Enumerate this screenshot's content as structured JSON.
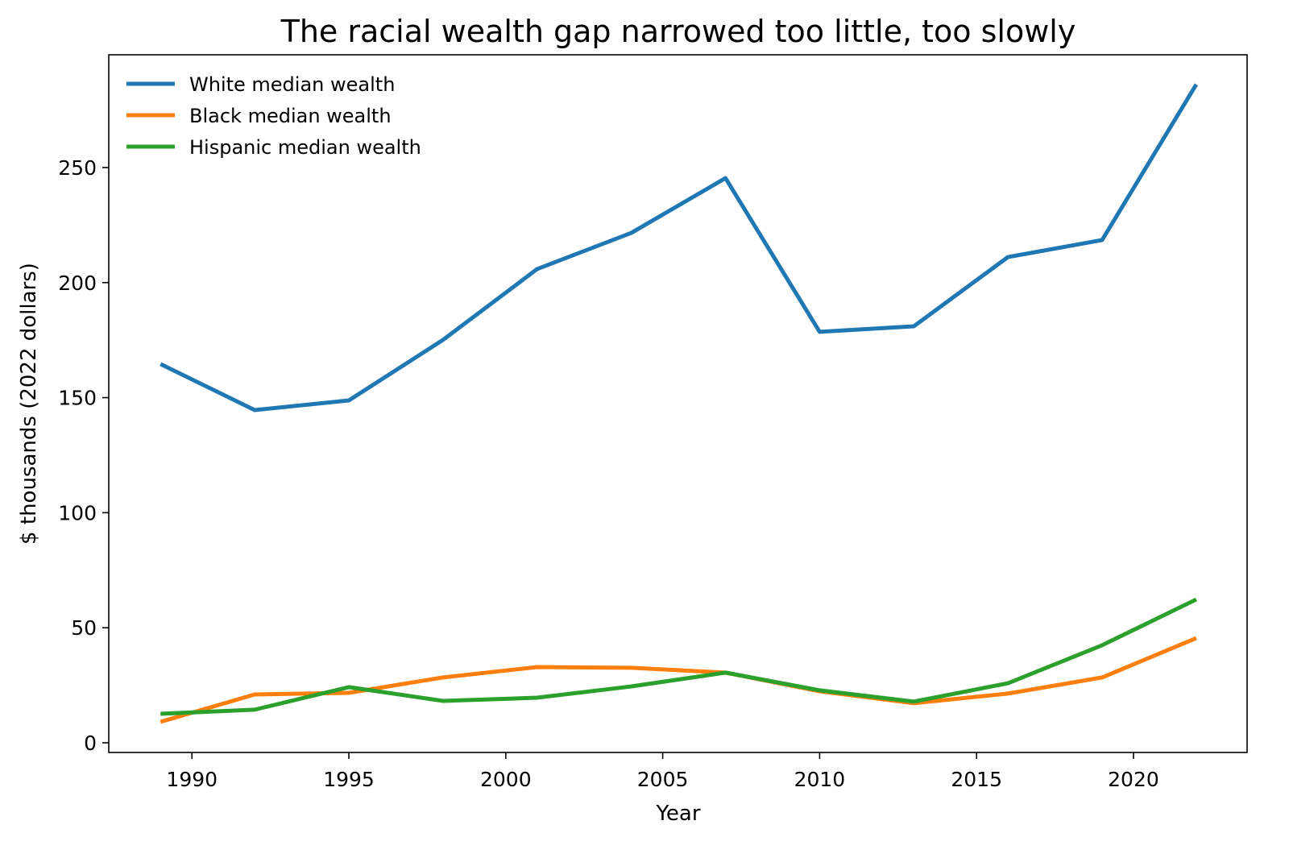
{
  "chart_data": {
    "type": "line",
    "title": "The racial wealth gap narrowed too little, too slowly",
    "xlabel": "Year",
    "ylabel": "$ thousands (2022 dollars)",
    "xlim": [
      1987.35,
      2023.62
    ],
    "ylim": [
      -4.2,
      299
    ],
    "xticks": [
      1990,
      1995,
      2000,
      2005,
      2010,
      2015,
      2020
    ],
    "yticks": [
      0,
      50,
      100,
      150,
      200,
      250
    ],
    "grid": false,
    "legend_position": "top-left",
    "x": [
      1989,
      1992,
      1995,
      1998,
      2001,
      2004,
      2007,
      2010,
      2013,
      2016,
      2019,
      2022
    ],
    "series": [
      {
        "name": "White median wealth",
        "color": "#1f77b4",
        "values": [
          164.6,
          144.6,
          148.8,
          175.1,
          205.9,
          221.6,
          245.4,
          178.6,
          181.0,
          211.1,
          218.5,
          286.1
        ]
      },
      {
        "name": "Black median wealth",
        "color": "#ff7f0e",
        "values": [
          9.1,
          21.0,
          21.7,
          28.4,
          32.9,
          32.6,
          30.5,
          22.4,
          17.2,
          21.4,
          28.4,
          45.5
        ]
      },
      {
        "name": "Hispanic median wealth",
        "color": "#2ca02c",
        "values": [
          12.6,
          14.4,
          24.2,
          18.2,
          19.6,
          24.5,
          30.5,
          22.8,
          17.9,
          25.9,
          42.4,
          62.3
        ]
      }
    ]
  }
}
